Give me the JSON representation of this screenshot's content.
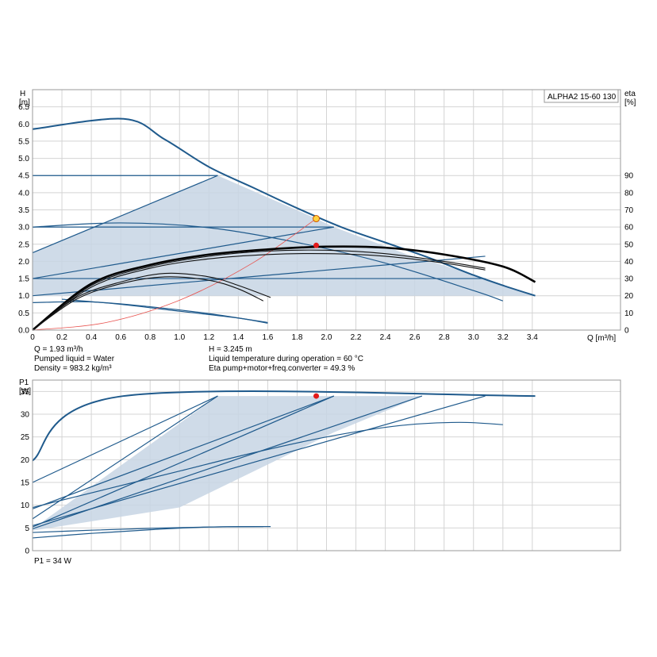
{
  "chart_data": [
    {
      "type": "line",
      "title": "ALPHA2 15-60 130",
      "y_axis_label": [
        "H",
        "[m]"
      ],
      "y2_axis_label": [
        "eta",
        "[%]"
      ],
      "x_axis_label": "Q [m³/h]",
      "xlim": [
        0,
        4.0
      ],
      "ylim": [
        0,
        7.0
      ],
      "y2lim": [
        0,
        140
      ],
      "x_ticks": [
        "0",
        "0.2",
        "0.4",
        "0.6",
        "0.8",
        "1.0",
        "1.2",
        "1.4",
        "1.6",
        "1.8",
        "2.0",
        "2.2",
        "2.4",
        "2.6",
        "2.8",
        "3.0",
        "3.2",
        "3.4"
      ],
      "y_ticks": [
        "0.0",
        "0.5",
        "1.0",
        "1.5",
        "2.0",
        "2.5",
        "3.0",
        "3.5",
        "4.0",
        "4.5",
        "5.0",
        "5.5",
        "6.0",
        "6.5"
      ],
      "y2_ticks": [
        "0",
        "10",
        "20",
        "30",
        "40",
        "50",
        "60",
        "70",
        "80",
        "90"
      ],
      "grid": true,
      "operating_area": [
        [
          0,
          2.25
        ],
        [
          1.26,
          4.5
        ],
        [
          1.93,
          3.245
        ],
        [
          2.05,
          3.0
        ],
        [
          2.55,
          2.2
        ],
        [
          2.6,
          2.15
        ],
        [
          3.08,
          1.5
        ],
        [
          3.42,
          1.0
        ],
        [
          0,
          1.0
        ]
      ],
      "series": [
        {
          "kind": "max",
          "x": [
            0,
            0.62,
            0.9,
            1.2,
            1.5,
            1.8,
            2.1,
            2.4,
            2.7,
            3.0,
            3.2,
            3.42
          ],
          "y": [
            5.85,
            6.15,
            5.55,
            4.75,
            4.15,
            3.55,
            3.0,
            2.55,
            2.1,
            1.6,
            1.3,
            1.0
          ]
        },
        {
          "kind": "constant-pressure",
          "x": [
            0,
            1.26
          ],
          "y": [
            4.5,
            4.5
          ]
        },
        {
          "kind": "constant-pressure",
          "x": [
            0,
            2.05
          ],
          "y": [
            3.0,
            3.0
          ]
        },
        {
          "kind": "constant-pressure",
          "x": [
            0,
            3.08
          ],
          "y": [
            1.5,
            1.5
          ]
        },
        {
          "kind": "proportional-pressure",
          "x": [
            0,
            1.26
          ],
          "y": [
            2.25,
            4.5
          ]
        },
        {
          "kind": "proportional-pressure",
          "x": [
            0,
            2.05
          ],
          "y": [
            1.5,
            3.0
          ]
        },
        {
          "kind": "proportional-pressure",
          "x": [
            0,
            3.08
          ],
          "y": [
            1.0,
            2.15
          ]
        },
        {
          "kind": "speed",
          "x": [
            0,
            0.6,
            1.2,
            1.8,
            2.4,
            3.0,
            3.2
          ],
          "y": [
            3.0,
            3.12,
            2.98,
            2.55,
            1.95,
            1.15,
            0.85
          ]
        },
        {
          "kind": "speed",
          "x": [
            0,
            0.4,
            0.8,
            1.2,
            1.6
          ],
          "y": [
            0.8,
            0.82,
            0.68,
            0.48,
            0.22
          ]
        },
        {
          "kind": "speed",
          "x": [
            0.2,
            0.6,
            1.0,
            1.4,
            1.6
          ],
          "y": [
            0.9,
            0.75,
            0.55,
            0.35,
            0.2
          ]
        },
        {
          "kind": "system-curve",
          "x": [
            0,
            0.5,
            1.0,
            1.5,
            1.93
          ],
          "y": [
            0,
            0.22,
            0.87,
            1.96,
            3.245
          ]
        }
      ],
      "efficiency_series": [
        {
          "x": [
            0,
            0.4,
            0.8,
            1.2,
            1.6,
            2.0,
            2.4,
            2.8,
            3.2,
            3.42
          ],
          "y": [
            0,
            27,
            38,
            44,
            47,
            48.6,
            48,
            44,
            37,
            28
          ]
        },
        {
          "x": [
            0,
            0.4,
            0.8,
            1.2,
            1.6,
            2.0,
            2.4,
            2.8,
            3.08
          ],
          "y": [
            0,
            26,
            37,
            43,
            46,
            46.5,
            44.5,
            40,
            36
          ]
        },
        {
          "x": [
            0,
            0.4,
            0.8,
            1.2,
            1.6,
            2.0,
            2.4,
            2.8,
            3.08
          ],
          "y": [
            0,
            25,
            36,
            41.5,
            44,
            44.5,
            43,
            39,
            35
          ]
        },
        {
          "x": [
            0,
            0.3,
            0.6,
            0.9,
            1.2,
            1.4,
            1.62
          ],
          "y": [
            0,
            19,
            28,
            33,
            31,
            26,
            19
          ]
        },
        {
          "x": [
            0,
            0.3,
            0.6,
            0.9,
            1.2,
            1.4,
            1.57
          ],
          "y": [
            0,
            18,
            27,
            31,
            29,
            24,
            17
          ]
        }
      ],
      "duty_point": {
        "Q": 1.93,
        "H": 3.245
      },
      "efficiency_point": {
        "Q": 1.93,
        "eta": 49.3
      }
    },
    {
      "type": "line",
      "y_axis_label": [
        "P1",
        "[W]"
      ],
      "xlim": [
        0,
        4.0
      ],
      "ylim": [
        0,
        37.5
      ],
      "y_ticks": [
        "0",
        "5",
        "10",
        "15",
        "20",
        "25",
        "30",
        "35"
      ],
      "grid": true,
      "operating_area": [
        [
          0,
          4.8
        ],
        [
          1.26,
          34
        ],
        [
          2.65,
          34
        ],
        [
          2.05,
          26
        ],
        [
          1.0,
          9.5
        ],
        [
          0,
          4.4
        ]
      ],
      "series": [
        {
          "kind": "max",
          "x": [
            0,
            0.62,
            3.42
          ],
          "y": [
            19.8,
            34,
            34
          ]
        },
        {
          "kind": "line",
          "x": [
            0,
            1.26
          ],
          "y": [
            15,
            34
          ]
        },
        {
          "kind": "line",
          "x": [
            0,
            2.05
          ],
          "y": [
            9.2,
            34
          ]
        },
        {
          "kind": "line",
          "x": [
            0,
            3.08
          ],
          "y": [
            5.5,
            34
          ]
        },
        {
          "kind": "line",
          "x": [
            0,
            1.26
          ],
          "y": [
            7,
            34
          ]
        },
        {
          "kind": "line",
          "x": [
            0,
            2.05
          ],
          "y": [
            5.2,
            34
          ]
        },
        {
          "kind": "line",
          "x": [
            0,
            2.65
          ],
          "y": [
            4.8,
            34
          ]
        },
        {
          "kind": "speed",
          "x": [
            0,
            0.5,
            1.0,
            1.5,
            2.0,
            2.5,
            2.9,
            3.2
          ],
          "y": [
            9.5,
            13.5,
            17.5,
            21.5,
            25,
            27.5,
            28.2,
            27.7
          ]
        },
        {
          "kind": "speed",
          "x": [
            0,
            0.4,
            0.8,
            1.2,
            1.62
          ],
          "y": [
            2.8,
            3.8,
            4.6,
            5.2,
            5.3
          ]
        },
        {
          "kind": "speed",
          "x": [
            0,
            0.4,
            0.8,
            1.2,
            1.57
          ],
          "y": [
            4.0,
            4.5,
            4.9,
            5.2,
            5.3
          ]
        }
      ],
      "duty_point": {
        "Q": 1.93,
        "P1": 34
      }
    }
  ],
  "info": {
    "q": "Q = 1.93 m³/h",
    "liquid": "Pumped liquid = Water",
    "density": "Density = 983.2 kg/m³",
    "h": "H = 3.245 m",
    "temp": "Liquid temperature during operation = 60 °C",
    "eta": "Eta pump+motor+freq.converter = 49.3 %",
    "p1": "P1 = 34 W"
  },
  "colors": {
    "curve": "#1f5a8c",
    "area": "#c7d5e4",
    "eta": "#000000",
    "duty": "#ffd23f",
    "point": "#e21b1b",
    "system": "#e8534f"
  }
}
